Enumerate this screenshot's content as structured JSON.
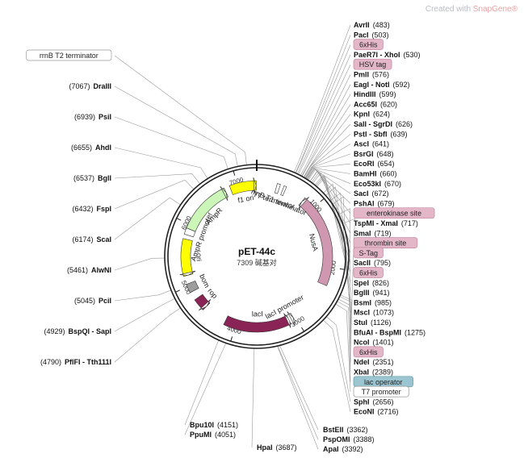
{
  "watermark": {
    "prefix": "Created with",
    "brand": "SnapGene",
    "mark": "®"
  },
  "plasmid": {
    "name": "pET-44c",
    "length": 7309,
    "size_label": "7309 碱基对"
  },
  "ticks": [
    {
      "pos": 1000,
      "label": "1000"
    },
    {
      "pos": 2000,
      "label": "2000"
    },
    {
      "pos": 3000,
      "label": "3000"
    },
    {
      "pos": 4000,
      "label": "4000"
    },
    {
      "pos": 5000,
      "label": "5000"
    },
    {
      "pos": 6000,
      "label": "6000"
    },
    {
      "pos": 7000,
      "label": "7000"
    }
  ],
  "features": [
    {
      "name": "NusA",
      "start": 800,
      "end": 2290,
      "color": "#cf97b0",
      "dir": -1,
      "label": "NusA"
    },
    {
      "name": "lacI",
      "start": 3100,
      "end": 4180,
      "color": "#8b2456",
      "dir": -1,
      "label": "lacI"
    },
    {
      "name": "lacI promoter",
      "start": 3030,
      "end": 3110,
      "color": "#ffffff",
      "dir": -1,
      "label": "lacI promoter"
    },
    {
      "name": "rop",
      "start": 4570,
      "end": 4770,
      "color": "#8b2456",
      "dir": -1,
      "label": "rop"
    },
    {
      "name": "bom",
      "start": 4900,
      "end": 5040,
      "color": "#9e9e9e",
      "dir": 0,
      "label": "bom"
    },
    {
      "name": "ori",
      "start": 5170,
      "end": 5760,
      "color": "#ffff00",
      "dir": -1,
      "label": "ori"
    },
    {
      "name": "AmpR",
      "start": 5930,
      "end": 6790,
      "color": "#ccf5b8",
      "dir": 1,
      "label": "AmpR"
    },
    {
      "name": "AmpR promoter",
      "start": 5830,
      "end": 5930,
      "color": "#ffffff",
      "dir": 0,
      "label": "AmpR promoter"
    },
    {
      "name": "f1 ori",
      "start": 6880,
      "end": 7300,
      "color": "#ffff00",
      "dir": 1,
      "label": "f1 ori"
    },
    {
      "name": "T7 terminator",
      "start": 320,
      "end": 370,
      "color": "#ffffff",
      "dir": 0,
      "label": "T7 terminator"
    },
    {
      "name": "rrnB T1 terminator",
      "start": 430,
      "end": 470,
      "color": "#ffffff",
      "dir": 0,
      "label": "rrnB T1 terminator"
    }
  ],
  "sites_right": [
    {
      "name": "AvrII",
      "pos": "(483)",
      "at": 483
    },
    {
      "name": "PacI",
      "pos": "(503)",
      "at": 503
    },
    {
      "tag": "6xHis",
      "at": 510
    },
    {
      "name": "PaeR7I - XhoI",
      "pos": "(530)",
      "at": 530
    },
    {
      "tag": "HSV tag",
      "at": 545
    },
    {
      "name": "PmlI",
      "pos": "(576)",
      "at": 576
    },
    {
      "name": "EagI - NotI",
      "pos": "(592)",
      "at": 592
    },
    {
      "name": "HindIII",
      "pos": "(599)",
      "at": 599
    },
    {
      "name": "Acc65I",
      "pos": "(620)",
      "at": 620
    },
    {
      "name": "KpnI",
      "pos": "(624)",
      "at": 624
    },
    {
      "name": "SalI - SgrDI",
      "pos": "(626)",
      "at": 626
    },
    {
      "name": "PstI - SbfI",
      "pos": "(639)",
      "at": 639
    },
    {
      "name": "AscI",
      "pos": "(641)",
      "at": 641
    },
    {
      "name": "BsrGI",
      "pos": "(648)",
      "at": 648
    },
    {
      "name": "EcoRI",
      "pos": "(654)",
      "at": 654
    },
    {
      "name": "BamHI",
      "pos": "(660)",
      "at": 660
    },
    {
      "name": "Eco53kI",
      "pos": "(670)",
      "at": 670
    },
    {
      "name": "SacI",
      "pos": "(672)",
      "at": 672
    },
    {
      "name": "PshAI",
      "pos": "(679)",
      "at": 679
    },
    {
      "tag": "enterokinase site",
      "at": 690
    },
    {
      "name": "TspMI - XmaI",
      "pos": "(717)",
      "at": 717
    },
    {
      "name": "SmaI",
      "pos": "(719)",
      "at": 719
    },
    {
      "tag": "thrombin site",
      "at": 740
    },
    {
      "tag": "S-Tag",
      "at": 760
    },
    {
      "name": "SacII",
      "pos": "(795)",
      "at": 795
    },
    {
      "tag": "6xHis",
      "at": 810
    },
    {
      "name": "SpeI",
      "pos": "(826)",
      "at": 826
    },
    {
      "name": "BglII",
      "pos": "(941)",
      "at": 941
    },
    {
      "name": "BsmI",
      "pos": "(985)",
      "at": 985
    },
    {
      "name": "MscI",
      "pos": "(1073)",
      "at": 1073
    },
    {
      "name": "StuI",
      "pos": "(1126)",
      "at": 1126
    },
    {
      "name": "BfuAI - BspMI",
      "pos": "(1275)",
      "at": 1275
    },
    {
      "name": "NcoI",
      "pos": "(1401)",
      "at": 1401
    },
    {
      "tag": "6xHis",
      "at": 2330
    },
    {
      "name": "NdeI",
      "pos": "(2351)",
      "at": 2351
    },
    {
      "name": "XbaI",
      "pos": "(2389)",
      "at": 2389
    },
    {
      "tag": "lac operator",
      "at": 2420,
      "alt": true
    },
    {
      "tag": "T7 promoter",
      "at": 2460,
      "plain": true
    },
    {
      "name": "SphI",
      "pos": "(2656)",
      "at": 2656
    },
    {
      "name": "EcoNI",
      "pos": "(2716)",
      "at": 2716
    }
  ],
  "sites_bottom": [
    {
      "name": "BstEII",
      "pos": "(3362)",
      "at": 3362
    },
    {
      "name": "PspOMI",
      "pos": "(3388)",
      "at": 3388
    },
    {
      "name": "ApaI",
      "pos": "(3392)",
      "at": 3392
    },
    {
      "name": "HpaI",
      "pos": "(3687)",
      "at": 3687
    },
    {
      "name": "Bpu10I",
      "pos": "(4151)",
      "at": 4151
    },
    {
      "name": "PpuMI",
      "pos": "(4051)",
      "at": 4051
    }
  ],
  "sites_left": [
    {
      "name": "PflFI - Tth111I",
      "pos": "(4790)",
      "at": 4790
    },
    {
      "name": "BspQI - SapI",
      "pos": "(4929)",
      "at": 4929
    },
    {
      "name": "PciI",
      "pos": "(5045)",
      "at": 5045
    },
    {
      "name": "AlwNI",
      "pos": "(5461)",
      "at": 5461
    },
    {
      "name": "ScaI",
      "pos": "(6174)",
      "at": 6174
    },
    {
      "name": "FspI",
      "pos": "(6432)",
      "at": 6432
    },
    {
      "name": "BglI",
      "pos": "(6537)",
      "at": 6537
    },
    {
      "name": "AhdI",
      "pos": "(6655)",
      "at": 6655
    },
    {
      "name": "PsiI",
      "pos": "(6939)",
      "at": 6939
    },
    {
      "name": "DraIII",
      "pos": "(7067)",
      "at": 7067
    },
    {
      "tag": "rrnB T2 terminator",
      "at": 7180,
      "plain": true
    }
  ],
  "colors": {
    "tag_bg": "#e3b7c8",
    "tag_border": "#c48aa2",
    "alt_bg": "#9bc6d1",
    "alt_border": "#5f98a8"
  }
}
